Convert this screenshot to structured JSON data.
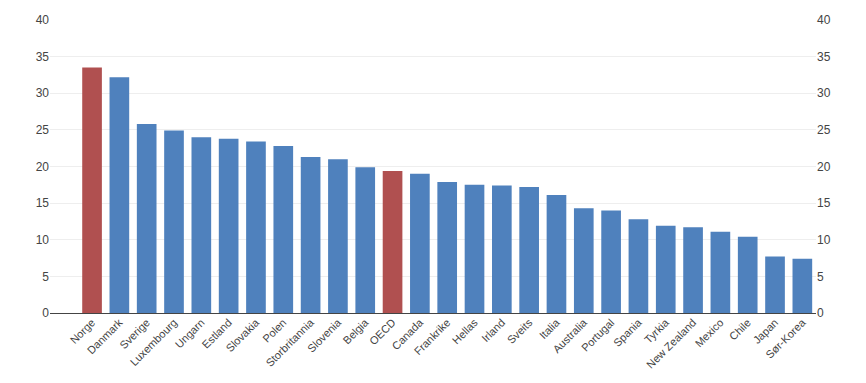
{
  "chart_data": {
    "type": "bar",
    "categories": [
      "Norge",
      "Danmark",
      "Sverige",
      "Luxembourg",
      "Ungarn",
      "Estland",
      "Slovakia",
      "Polen",
      "Storbritannia",
      "Slovenia",
      "Belgia",
      "OECD",
      "Canada",
      "Frankrike",
      "Hellas",
      "Irland",
      "Sveits",
      "Italia",
      "Australia",
      "Portugal",
      "Spania",
      "Tyrkia",
      "New Zealand",
      "Mexico",
      "Chile",
      "Japan",
      "Sør-Korea"
    ],
    "values": [
      33.5,
      32.2,
      25.8,
      24.9,
      24.0,
      23.8,
      23.4,
      22.8,
      21.3,
      21.0,
      19.9,
      19.4,
      19.0,
      17.9,
      17.5,
      17.4,
      17.2,
      16.1,
      14.3,
      14.0,
      12.8,
      11.9,
      11.7,
      11.1,
      10.4,
      7.7,
      7.4
    ],
    "colors": [
      "#b05050",
      "#4f81bd",
      "#4f81bd",
      "#4f81bd",
      "#4f81bd",
      "#4f81bd",
      "#4f81bd",
      "#4f81bd",
      "#4f81bd",
      "#4f81bd",
      "#4f81bd",
      "#b05050",
      "#4f81bd",
      "#4f81bd",
      "#4f81bd",
      "#4f81bd",
      "#4f81bd",
      "#4f81bd",
      "#4f81bd",
      "#4f81bd",
      "#4f81bd",
      "#4f81bd",
      "#4f81bd",
      "#4f81bd",
      "#4f81bd",
      "#4f81bd",
      "#4f81bd"
    ],
    "ylim": [
      0,
      40
    ],
    "yticks": [
      0,
      5,
      10,
      15,
      20,
      25,
      30,
      35,
      40
    ],
    "y2lim": [
      0,
      40
    ],
    "y2ticks": [
      0,
      5,
      10,
      15,
      20,
      25,
      30,
      35,
      40
    ],
    "grid": true
  }
}
